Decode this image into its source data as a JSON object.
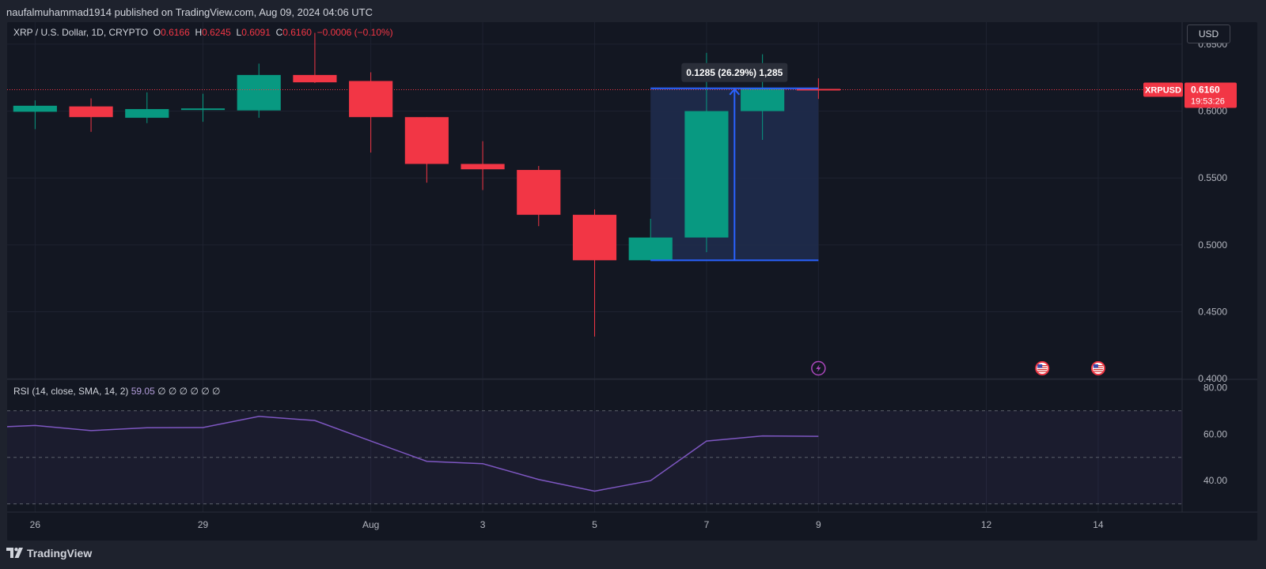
{
  "header": {
    "published_text": "naufalmuhammad1914 published on TradingView.com, Aug 09, 2024 04:06 UTC"
  },
  "legend": {
    "symbol": "XRP / U.S. Dollar, 1D, CRYPTO",
    "open_label": "O",
    "open": "0.6166",
    "high_label": "H",
    "high": "0.6245",
    "low_label": "L",
    "low": "0.6091",
    "close_label": "C",
    "close": "0.6160",
    "change": "−0.0006 (−0.10%)"
  },
  "currency_button": "USD",
  "price_tag": {
    "symbol": "XRPUSD",
    "price": "0.6160",
    "countdown": "19:53:26"
  },
  "measure_label": "0.1285 (26.29%) 1,285",
  "rsi_legend": {
    "label": "RSI (14, close, SMA, 14, 2)",
    "value": "59.05",
    "extras": "∅ ∅ ∅ ∅ ∅ ∅"
  },
  "footer": {
    "brand": "TradingView"
  },
  "colors": {
    "up": "#089981",
    "down": "#f23645",
    "rsi": "#7e57c2",
    "measure_fill": "#1f2b4d",
    "measure_line": "#2962ff",
    "background": "#131722"
  },
  "chart_data": [
    {
      "type": "candlestick",
      "title": "XRP / U.S. Dollar, 1D, CRYPTO",
      "y_axis_ticks": [
        "0.4000",
        "0.4500",
        "0.5000",
        "0.5500",
        "0.6000",
        "0.6500"
      ],
      "ylim": [
        0.3995,
        0.6665
      ],
      "x_axis_ticks": [
        "26",
        "29",
        "Aug",
        "3",
        "5",
        "7",
        "9",
        "12",
        "14"
      ],
      "x_tick_day_index": [
        0,
        3,
        6,
        8,
        10,
        12,
        14,
        17,
        19
      ],
      "xlim_day_index": [
        -0.5,
        20.5
      ],
      "candles": [
        {
          "date": "Jul 26",
          "open": 0.5995,
          "high": 0.608,
          "low": 0.5865,
          "close": 0.604
        },
        {
          "date": "Jul 27",
          "open": 0.6035,
          "high": 0.6095,
          "low": 0.5845,
          "close": 0.5955
        },
        {
          "date": "Jul 28",
          "open": 0.595,
          "high": 0.614,
          "low": 0.591,
          "close": 0.6015
        },
        {
          "date": "Jul 29",
          "open": 0.6015,
          "high": 0.613,
          "low": 0.592,
          "close": 0.602
        },
        {
          "date": "Jul 30",
          "open": 0.6005,
          "high": 0.6355,
          "low": 0.595,
          "close": 0.627
        },
        {
          "date": "Jul 31",
          "open": 0.627,
          "high": 0.6585,
          "low": 0.621,
          "close": 0.6215
        },
        {
          "date": "Aug 1",
          "open": 0.6225,
          "high": 0.629,
          "low": 0.569,
          "close": 0.5955
        },
        {
          "date": "Aug 2",
          "open": 0.5955,
          "high": 0.5955,
          "low": 0.5465,
          "close": 0.5605
        },
        {
          "date": "Aug 3",
          "open": 0.5605,
          "high": 0.5775,
          "low": 0.541,
          "close": 0.5565
        },
        {
          "date": "Aug 4",
          "open": 0.556,
          "high": 0.559,
          "low": 0.514,
          "close": 0.5225
        },
        {
          "date": "Aug 5",
          "open": 0.5225,
          "high": 0.5265,
          "low": 0.4315,
          "close": 0.4885
        },
        {
          "date": "Aug 6",
          "open": 0.4885,
          "high": 0.5195,
          "low": 0.4885,
          "close": 0.5055
        },
        {
          "date": "Aug 7",
          "open": 0.5055,
          "high": 0.6435,
          "low": 0.4945,
          "close": 0.6
        },
        {
          "date": "Aug 8",
          "open": 0.6,
          "high": 0.6425,
          "low": 0.5785,
          "close": 0.6166
        },
        {
          "date": "Aug 9",
          "open": 0.6166,
          "high": 0.6245,
          "low": 0.6091,
          "close": 0.616
        }
      ],
      "last_price": 0.616,
      "measure": {
        "from_day_index": 11,
        "to_day_index": 14,
        "low": 0.4885,
        "high": 0.617,
        "label": "0.1285 (26.29%) 1,285"
      },
      "event_icons": [
        {
          "day_index": 14,
          "kind": "lightning-event-icon"
        },
        {
          "day_index": 18,
          "kind": "us-flag-icon"
        },
        {
          "day_index": 19,
          "kind": "us-flag-icon"
        }
      ]
    },
    {
      "type": "line",
      "title": "RSI (14, close, SMA, 14, 2)",
      "y_axis_ticks": [
        "40.00",
        "60.00",
        "80.00"
      ],
      "ylim": [
        26.5,
        83.5
      ],
      "band": [
        30,
        70
      ],
      "midline": 50,
      "series": [
        {
          "values": [
            63.2,
            63.7,
            61.5,
            62.7,
            62.8,
            67.6,
            65.8,
            57.0,
            48.3,
            47.3,
            40.5,
            35.5,
            40.0,
            57.0,
            59.2,
            59.05
          ]
        }
      ],
      "x_day_index": [
        -0.5,
        0,
        1,
        2,
        3,
        4,
        5,
        6,
        7,
        8,
        9,
        10,
        11,
        12,
        13,
        14
      ]
    }
  ]
}
